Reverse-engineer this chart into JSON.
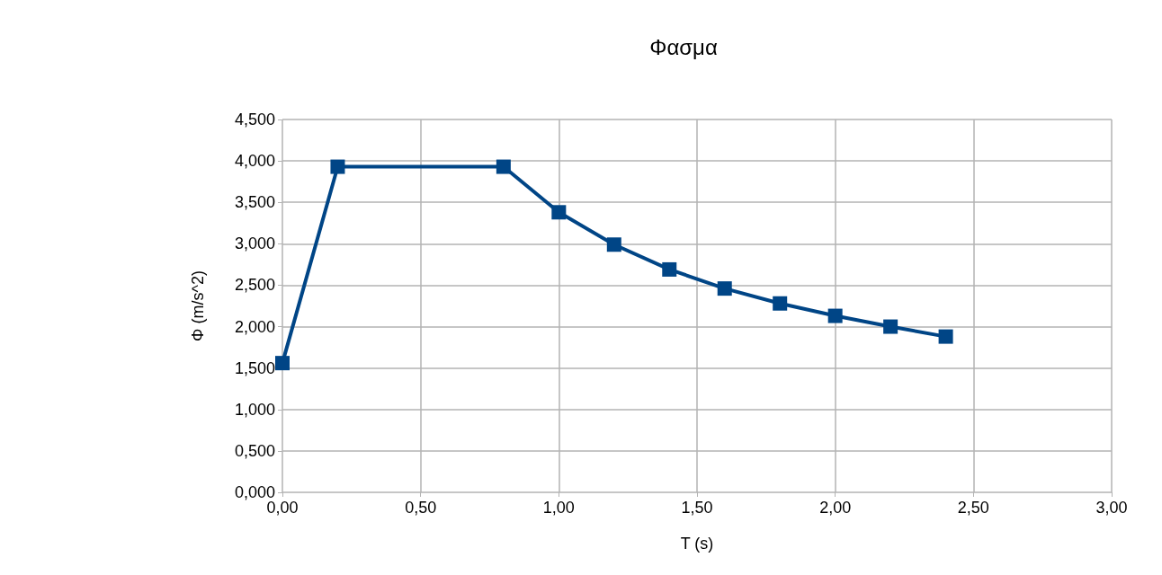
{
  "chart_data": {
    "type": "line",
    "title": "Φασμα",
    "xlabel": "T (s)",
    "ylabel": "Φ (m/s^2)",
    "x": [
      0,
      0.2,
      0.8,
      1.0,
      1.2,
      1.4,
      1.6,
      1.8,
      2.0,
      2.2,
      2.4
    ],
    "series": [
      {
        "color": "#004586",
        "values": [
          1.56,
          3.93,
          3.93,
          3.38,
          2.99,
          2.69,
          2.46,
          2.28,
          2.13,
          2.0,
          1.88
        ]
      }
    ],
    "xlim": [
      0,
      3
    ],
    "xticks": [
      {
        "value": 0,
        "label": "0,00"
      },
      {
        "value": 0.5,
        "label": "0,50"
      },
      {
        "value": 1,
        "label": "1,00"
      },
      {
        "value": 1.5,
        "label": "1,50"
      },
      {
        "value": 2,
        "label": "2,00"
      },
      {
        "value": 2.5,
        "label": "2,50"
      },
      {
        "value": 3,
        "label": "3,00"
      }
    ],
    "ylim": [
      0,
      4.5
    ],
    "yticks": [
      {
        "value": 0,
        "label": "0,000"
      },
      {
        "value": 0.5,
        "label": "0,500"
      },
      {
        "value": 1,
        "label": "1,000"
      },
      {
        "value": 1.5,
        "label": "1,500"
      },
      {
        "value": 2,
        "label": "2,000"
      },
      {
        "value": 2.5,
        "label": "2,500"
      },
      {
        "value": 3,
        "label": "3,000"
      },
      {
        "value": 3.5,
        "label": "3,500"
      },
      {
        "value": 4,
        "label": "4,000"
      },
      {
        "value": 4.5,
        "label": "4,500"
      }
    ],
    "grid": true,
    "marker": "square",
    "line_style": "solid"
  }
}
